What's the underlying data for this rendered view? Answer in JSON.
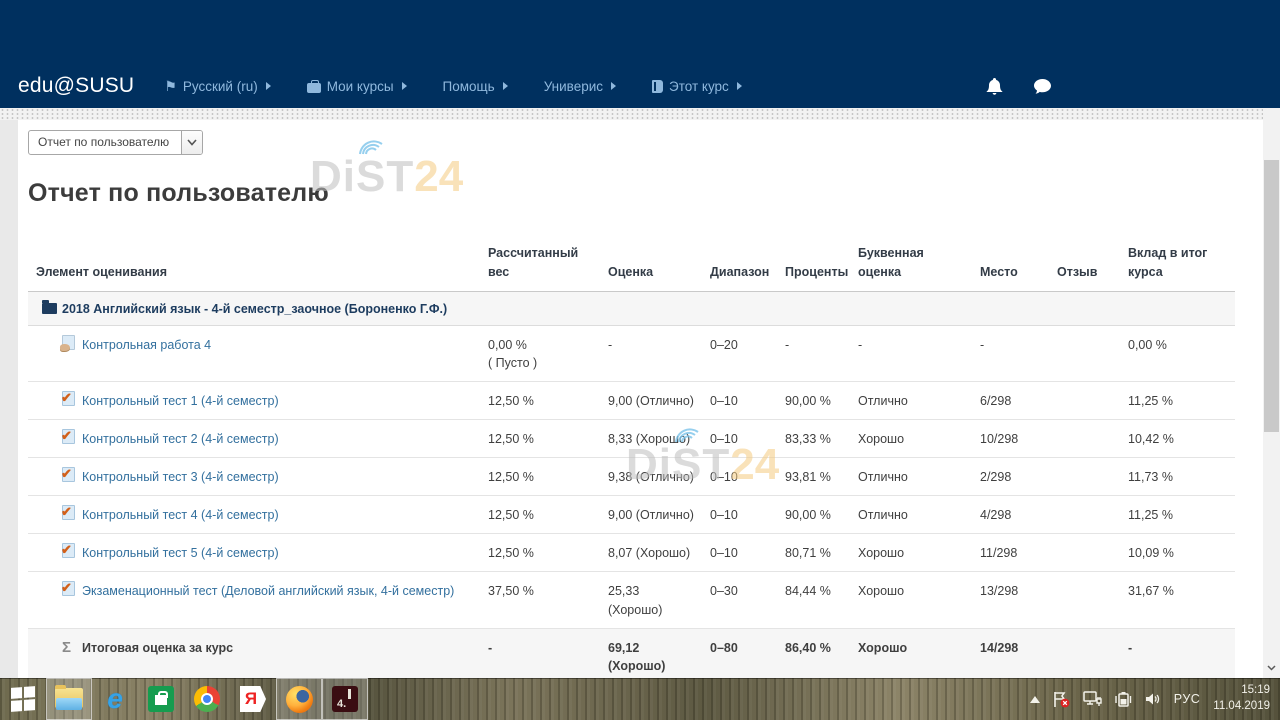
{
  "navbar": {
    "brand": "edu@SUSU",
    "items": [
      {
        "label": "Русский (ru)",
        "icon": "flag-icon"
      },
      {
        "label": "Мои курсы",
        "icon": "briefcase-icon"
      },
      {
        "label": "Помощь",
        "icon": null
      },
      {
        "label": "Универис",
        "icon": null
      },
      {
        "label": "Этот курс",
        "icon": "book-icon"
      }
    ]
  },
  "report_selector": {
    "value": "Отчет по пользователю"
  },
  "page": {
    "title": "Отчет по пользователю"
  },
  "watermark": {
    "text_gray": "DiST",
    "text_accent": "24"
  },
  "grade_table": {
    "headers": [
      "Элемент оценивания",
      "Рассчитанный вес",
      "Оценка",
      "Диапазон",
      "Проценты",
      "Буквенная оценка",
      "Место",
      "Отзыв",
      "Вклад в итог курса"
    ],
    "category": {
      "label": "2018 Английский язык - 4-й семестр_заочное (Бороненко Г.Ф.)"
    },
    "rows": [
      {
        "name": "Контрольная работа 4",
        "icon": "assignment-icon",
        "cells": [
          "0,00 %\n( Пусто )",
          "-",
          "0–20",
          "-",
          "-",
          "-",
          "",
          "0,00 %"
        ]
      },
      {
        "name": "Контрольный тест 1 (4-й семестр)",
        "icon": "quiz-icon",
        "cells": [
          "12,50 %",
          "9,00 (Отлично)",
          "0–10",
          "90,00 %",
          "Отлично",
          "6/298",
          "",
          "11,25 %"
        ]
      },
      {
        "name": "Контрольный тест 2 (4-й семестр)",
        "icon": "quiz-icon",
        "cells": [
          "12,50 %",
          "8,33 (Хорошо)",
          "0–10",
          "83,33 %",
          "Хорошо",
          "10/298",
          "",
          "10,42 %"
        ]
      },
      {
        "name": "Контрольный тест 3 (4-й семестр)",
        "icon": "quiz-icon",
        "cells": [
          "12,50 %",
          "9,38 (Отлично)",
          "0–10",
          "93,81 %",
          "Отлично",
          "2/298",
          "",
          "11,73 %"
        ]
      },
      {
        "name": "Контрольный тест 4 (4-й семестр)",
        "icon": "quiz-icon",
        "cells": [
          "12,50 %",
          "9,00 (Отлично)",
          "0–10",
          "90,00 %",
          "Отлично",
          "4/298",
          "",
          "11,25 %"
        ]
      },
      {
        "name": "Контрольный тест 5 (4-й семестр)",
        "icon": "quiz-icon",
        "cells": [
          "12,50 %",
          "8,07 (Хорошо)",
          "0–10",
          "80,71 %",
          "Хорошо",
          "11/298",
          "",
          "10,09 %"
        ]
      },
      {
        "name": "Экзаменационный тест (Деловой английский язык, 4-й семестр)",
        "icon": "quiz-icon",
        "cells": [
          "37,50 %",
          "25,33 (Хорошо)",
          "0–30",
          "84,44 %",
          "Хорошо",
          "13/298",
          "",
          "31,67 %"
        ]
      }
    ],
    "total": {
      "name": "Итоговая оценка за курс",
      "icon": "sigma-icon",
      "cells": [
        "-",
        "69,12 (Хорошо)",
        "0–80",
        "86,40 %",
        "Хорошо",
        "14/298",
        "",
        "-"
      ]
    }
  },
  "tray": {
    "lang": "РУС",
    "time": "15:19",
    "date": "11.04.2019"
  }
}
